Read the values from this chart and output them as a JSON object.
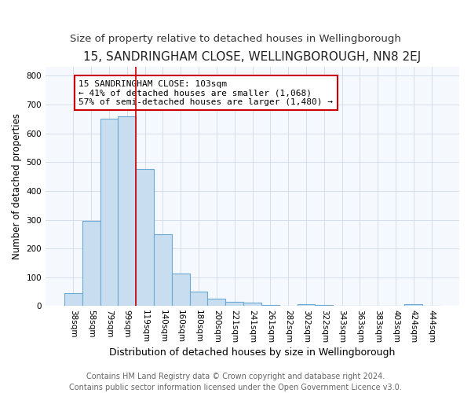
{
  "title": "15, SANDRINGHAM CLOSE, WELLINGBOROUGH, NN8 2EJ",
  "subtitle": "Size of property relative to detached houses in Wellingborough",
  "xlabel": "Distribution of detached houses by size in Wellingborough",
  "ylabel": "Number of detached properties",
  "categories": [
    "38sqm",
    "58sqm",
    "79sqm",
    "99sqm",
    "119sqm",
    "140sqm",
    "160sqm",
    "180sqm",
    "200sqm",
    "221sqm",
    "241sqm",
    "261sqm",
    "282sqm",
    "302sqm",
    "322sqm",
    "343sqm",
    "363sqm",
    "383sqm",
    "403sqm",
    "424sqm",
    "444sqm"
  ],
  "values": [
    45,
    295,
    650,
    660,
    475,
    250,
    112,
    50,
    27,
    14,
    13,
    3,
    2,
    7,
    5,
    2,
    1,
    1,
    0,
    8,
    1
  ],
  "bar_color": "#c8ddf0",
  "bar_edge_color": "#6aaad4",
  "vline_color": "#cc0000",
  "vline_x_idx": 3,
  "annotation_text": "15 SANDRINGHAM CLOSE: 103sqm\n← 41% of detached houses are smaller (1,068)\n57% of semi-detached houses are larger (1,480) →",
  "annotation_box_facecolor": "white",
  "annotation_box_edgecolor": "#cc0000",
  "ylim": [
    0,
    830
  ],
  "yticks": [
    0,
    100,
    200,
    300,
    400,
    500,
    600,
    700,
    800
  ],
  "fig_background": "#ffffff",
  "plot_background": "#f5f8fd",
  "title_fontsize": 11,
  "subtitle_fontsize": 9.5,
  "xlabel_fontsize": 9,
  "ylabel_fontsize": 8.5,
  "tick_fontsize": 7.5,
  "annotation_fontsize": 8,
  "footer_fontsize": 7,
  "footer": "Contains HM Land Registry data © Crown copyright and database right 2024.\nContains public sector information licensed under the Open Government Licence v3.0."
}
